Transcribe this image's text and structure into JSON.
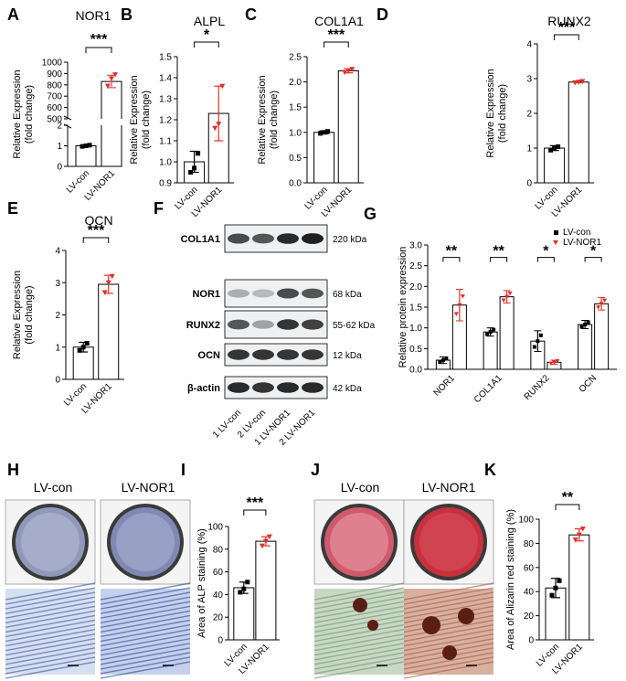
{
  "panels": {
    "A": "A",
    "B": "B",
    "C": "C",
    "D": "D",
    "E": "E",
    "F": "F",
    "G": "G",
    "H": "H",
    "I": "I",
    "J": "J",
    "K": "K"
  },
  "common": {
    "xcats": [
      "LV-con",
      "LV-NOR1"
    ],
    "ylabel1": "Relative  Expression",
    "ylabel2": "(fold change)"
  },
  "colors": {
    "control": "#000000",
    "treated": "#e0302a",
    "bar": "#ffffff"
  },
  "chart_data": [
    {
      "id": "A",
      "type": "bar",
      "title": "NOR1",
      "categories": [
        "LV-con",
        "LV-NOR1"
      ],
      "values": [
        1.0,
        830
      ],
      "points": [
        [
          0.97,
          1.0,
          1.03
        ],
        [
          790,
          855,
          890
        ]
      ],
      "errors": [
        0.05,
        55
      ],
      "significance": "***",
      "axis_break": true,
      "yticks_low": [
        "0",
        "1",
        "2"
      ],
      "yticks_high": [
        "500",
        "600",
        "700",
        "800",
        "900",
        "1000"
      ]
    },
    {
      "id": "B",
      "type": "bar",
      "title": "ALPL",
      "categories": [
        "LV-con",
        "LV-NOR1"
      ],
      "values": [
        1.0,
        1.23
      ],
      "points": [
        [
          0.95,
          0.97,
          1.04
        ],
        [
          1.16,
          1.18,
          1.36
        ]
      ],
      "errors": [
        0.05,
        0.13
      ],
      "significance": "*",
      "ylim": [
        0.9,
        1.5
      ],
      "yticks": [
        "0.9",
        "1.0",
        "1.1",
        "1.2",
        "1.3",
        "1.4",
        "1.5"
      ]
    },
    {
      "id": "C",
      "type": "bar",
      "title": "COL1A1",
      "categories": [
        "LV-con",
        "LV-NOR1"
      ],
      "values": [
        1.0,
        2.22
      ],
      "points": [
        [
          0.98,
          1.0,
          1.02
        ],
        [
          2.19,
          2.22,
          2.25
        ]
      ],
      "errors": [
        0.03,
        0.04
      ],
      "significance": "***",
      "ylim": [
        0,
        2.5
      ],
      "yticks": [
        "0.0",
        "0.5",
        "1.0",
        "1.5",
        "2.0",
        "2.5"
      ]
    },
    {
      "id": "D",
      "type": "bar",
      "title": "RUNX2",
      "categories": [
        "LV-con",
        "LV-NOR1"
      ],
      "values": [
        1.0,
        2.9
      ],
      "points": [
        [
          0.94,
          1.0,
          1.04
        ],
        [
          2.88,
          2.9,
          2.92
        ]
      ],
      "errors": [
        0.07,
        0.02
      ],
      "significance": "***",
      "ylim": [
        0,
        4
      ],
      "yticks": [
        "0",
        "1",
        "2",
        "3",
        "4"
      ]
    },
    {
      "id": "E",
      "type": "bar",
      "title": "OCN",
      "categories": [
        "LV-con",
        "LV-NOR1"
      ],
      "values": [
        1.0,
        2.95
      ],
      "points": [
        [
          0.9,
          1.0,
          1.12
        ],
        [
          2.7,
          3.0,
          3.2
        ]
      ],
      "errors": [
        0.15,
        0.28
      ],
      "significance": "***",
      "ylim": [
        0,
        4
      ],
      "yticks": [
        "0",
        "1",
        "2",
        "3",
        "4"
      ]
    },
    {
      "id": "G",
      "type": "bar",
      "title": "",
      "ylabel": "Relative protein expression",
      "categories": [
        "NOR1",
        "COL1A1",
        "RUNX2",
        "OCN"
      ],
      "series": [
        {
          "name": "LV-con",
          "values": [
            0.22,
            0.9,
            0.68,
            1.08
          ],
          "errors": [
            0.08,
            0.1,
            0.25,
            0.1
          ]
        },
        {
          "name": "LV-NOR1",
          "values": [
            1.55,
            1.75,
            0.17,
            1.58
          ],
          "errors": [
            0.38,
            0.15,
            0.05,
            0.15
          ]
        }
      ],
      "significance": [
        "**",
        "**",
        "*",
        "*"
      ],
      "ylim": [
        0,
        3
      ],
      "yticks": [
        "0.0",
        "0.5",
        "1.0",
        "1.5",
        "2.0",
        "2.5",
        "3.0"
      ],
      "legend": "top-right"
    },
    {
      "id": "I",
      "type": "bar",
      "title": "",
      "ylabel": "Area of ALP staining (%)",
      "categories": [
        "LV-con",
        "LV-NOR1"
      ],
      "values": [
        46,
        87
      ],
      "points": [
        [
          42,
          45,
          51
        ],
        [
          83,
          87,
          91
        ]
      ],
      "errors": [
        5,
        4
      ],
      "significance": "***",
      "ylim": [
        0,
        100
      ],
      "yticks": [
        "0",
        "20",
        "40",
        "60",
        "80",
        "100"
      ]
    },
    {
      "id": "K",
      "type": "bar",
      "title": "",
      "ylabel": "Area of Alizarin red staining (%)",
      "categories": [
        "LV-con",
        "LV-NOR1"
      ],
      "values": [
        43,
        87
      ],
      "points": [
        [
          37,
          43,
          49
        ],
        [
          83,
          87,
          92
        ]
      ],
      "errors": [
        8,
        5
      ],
      "significance": "**",
      "ylim": [
        0,
        100
      ],
      "yticks": [
        "0",
        "20",
        "40",
        "60",
        "80",
        "100"
      ]
    }
  ],
  "western": {
    "proteins": [
      "COL1A1",
      "NOR1",
      "RUNX2",
      "OCN",
      "β-actin"
    ],
    "sizes": [
      "220 kDa",
      "68 kDa",
      "55-62 kDa",
      "12 kDa",
      "42 kDa"
    ],
    "lanes": [
      "1 LV-con",
      "2 LV-con",
      "1 LV-NOR1",
      "2 LV-NOR1"
    ]
  },
  "staining": {
    "H": {
      "left": "LV-con",
      "right": "LV-NOR1"
    },
    "J": {
      "left": "LV-con",
      "right": "LV-NOR1"
    }
  }
}
